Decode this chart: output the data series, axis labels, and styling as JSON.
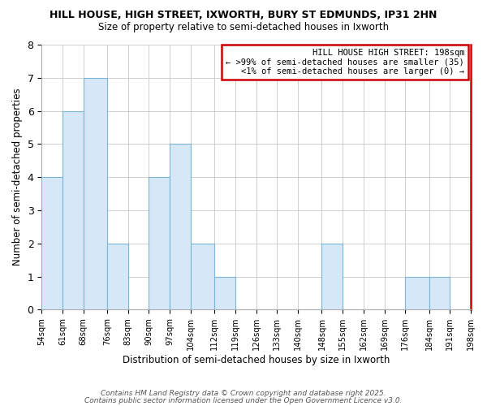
{
  "title": "HILL HOUSE, HIGH STREET, IXWORTH, BURY ST EDMUNDS, IP31 2HN",
  "subtitle": "Size of property relative to semi-detached houses in Ixworth",
  "xlabel": "Distribution of semi-detached houses by size in Ixworth",
  "ylabel": "Number of semi-detached properties",
  "tick_positions": [
    54,
    61,
    68,
    76,
    83,
    90,
    97,
    104,
    112,
    119,
    126,
    133,
    140,
    148,
    155,
    162,
    169,
    176,
    184,
    191,
    198
  ],
  "tick_labels": [
    "54sqm",
    "61sqm",
    "68sqm",
    "76sqm",
    "83sqm",
    "90sqm",
    "97sqm",
    "104sqm",
    "112sqm",
    "119sqm",
    "126sqm",
    "133sqm",
    "140sqm",
    "148sqm",
    "155sqm",
    "162sqm",
    "169sqm",
    "176sqm",
    "184sqm",
    "191sqm",
    "198sqm"
  ],
  "bar_lefts": [
    54,
    61,
    68,
    76,
    83,
    90,
    97,
    104,
    112,
    119,
    126,
    133,
    140,
    148,
    155,
    162,
    169,
    176,
    184,
    191
  ],
  "bar_rights": [
    61,
    68,
    76,
    83,
    90,
    97,
    104,
    112,
    119,
    126,
    133,
    140,
    148,
    155,
    162,
    169,
    176,
    184,
    191,
    198
  ],
  "bar_heights": [
    4,
    6,
    7,
    2,
    0,
    4,
    5,
    2,
    1,
    0,
    0,
    0,
    0,
    2,
    0,
    0,
    0,
    1,
    1,
    0
  ],
  "bar_color": "#d6e8f7",
  "bar_edge_color": "#7ab4d8",
  "highlight_bar_right_edge_color": "#cc0000",
  "annotation_title": "HILL HOUSE HIGH STREET: 198sqm",
  "annotation_line2": "← >99% of semi-detached houses are smaller (35)",
  "annotation_line3": "<1% of semi-detached houses are larger (0) →",
  "annotation_box_color": "#ffffff",
  "annotation_box_edge": "#cc0000",
  "ylim": [
    0,
    8
  ],
  "yticks": [
    0,
    1,
    2,
    3,
    4,
    5,
    6,
    7,
    8
  ],
  "footer1": "Contains HM Land Registry data © Crown copyright and database right 2025.",
  "footer2": "Contains public sector information licensed under the Open Government Licence v3.0.",
  "background_color": "#ffffff",
  "grid_color": "#c8c8c8",
  "spine_color": "#aaaaaa"
}
